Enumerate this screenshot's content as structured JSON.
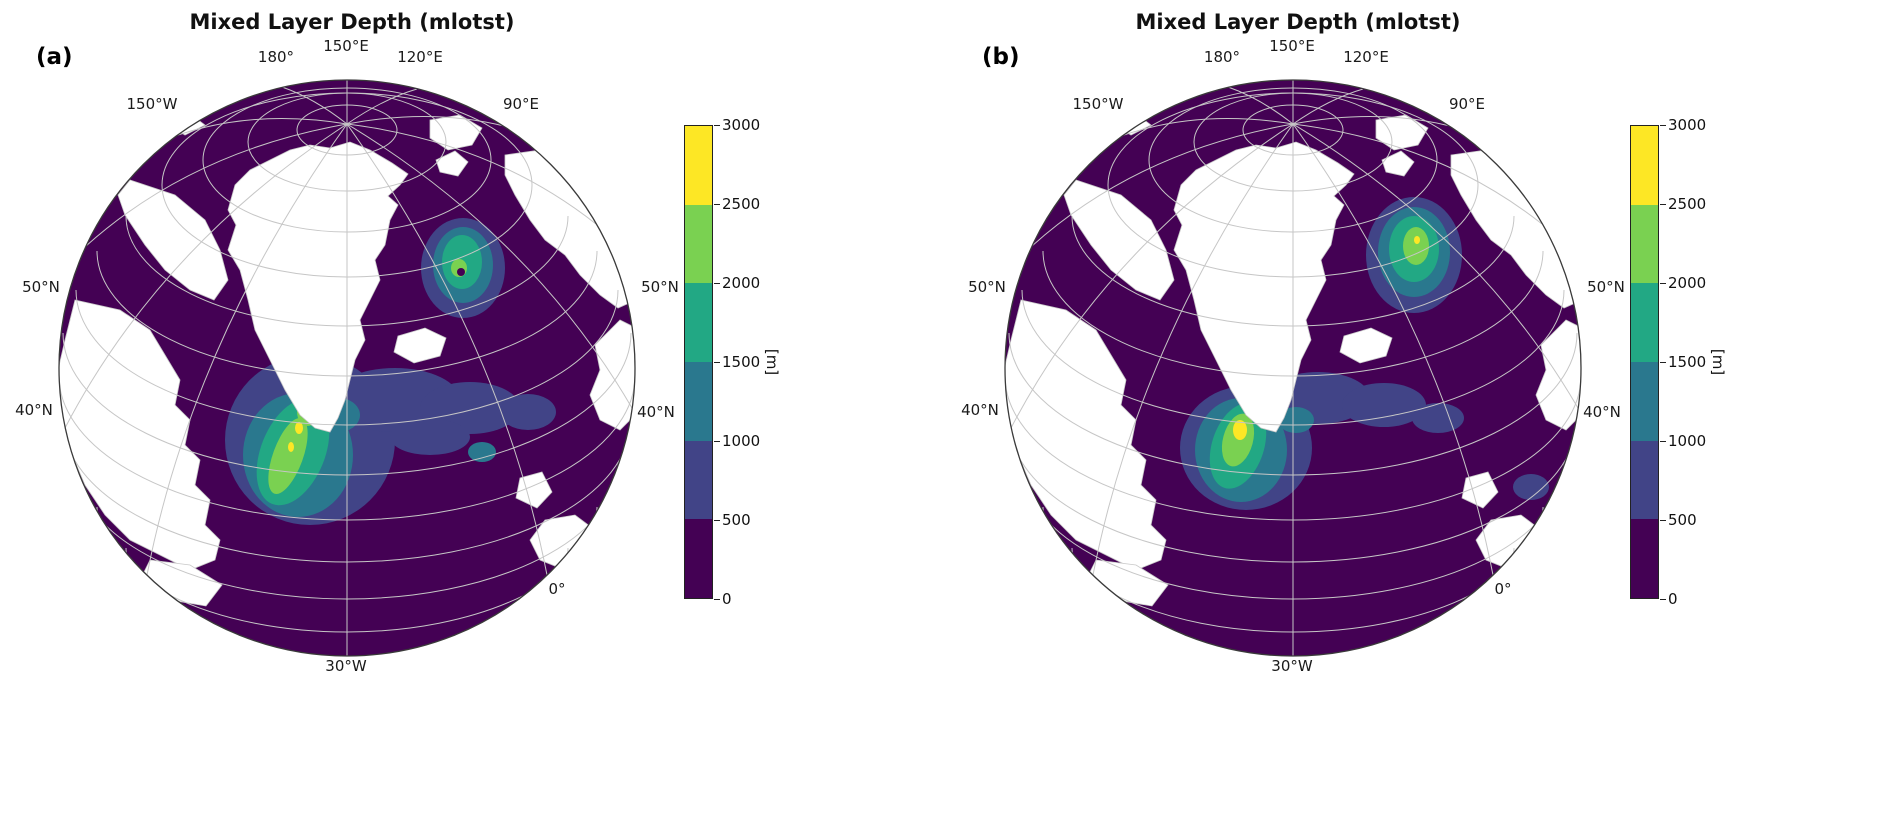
{
  "figure": {
    "panels": [
      {
        "tag": "(a)",
        "title": "Mixed Layer Depth (mlotst)",
        "labels": {
          "lon_180": "180°",
          "lon_150e": "150°E",
          "lon_120e": "120°E",
          "lon_150w": "150°W",
          "lon_90e": "90°E",
          "lat_50n_left": "50°N",
          "lat_40n_left": "40°N",
          "lat_50n_right": "50°N",
          "lat_40n_right": "40°N",
          "lon_0": "0°",
          "lon_30w": "30°W"
        },
        "colorbar": {
          "ticks": [
            "3000",
            "2500",
            "2000",
            "1500",
            "1000",
            "500",
            "0"
          ],
          "unit_label": "[m]"
        }
      },
      {
        "tag": "(b)",
        "title": "Mixed Layer Depth (mlotst)",
        "labels": {
          "lon_180": "180°",
          "lon_150e": "150°E",
          "lon_120e": "120°E",
          "lon_150w": "150°W",
          "lon_90e": "90°E",
          "lat_50n_left": "50°N",
          "lat_40n_left": "40°N",
          "lat_50n_right": "50°N",
          "lat_40n_right": "40°N",
          "lon_0": "0°",
          "lon_30w": "30°W"
        },
        "colorbar": {
          "ticks": [
            "3000",
            "2500",
            "2000",
            "1500",
            "1000",
            "500",
            "0"
          ],
          "unit_label": "[m]"
        }
      }
    ]
  },
  "chart_data": {
    "type": "heatmap",
    "title": "Mixed Layer Depth (mlotst)",
    "variable": "mlotst (ocean mixed layer thickness)",
    "units": "m",
    "projection": "orthographic globe over the North Atlantic / Arctic, central meridian ~30°W",
    "colormap": "viridis, discrete (6 bins)",
    "levels_m": [
      0,
      500,
      1000,
      1500,
      2000,
      2500,
      3000
    ],
    "level_colors": [
      "#440154",
      "#414487",
      "#2a788e",
      "#22a884",
      "#7ad151",
      "#fde725"
    ],
    "colorbar_label": "[m]",
    "colorbar_range": [
      0,
      3000
    ],
    "graticule": {
      "longitude_labels": [
        "150°W",
        "180°",
        "150°E",
        "120°E",
        "90°E",
        "0°",
        "30°W"
      ],
      "latitude_labels": [
        "50°N",
        "40°N"
      ],
      "grid_on": true,
      "grid_color_hint": "light gray"
    },
    "land_color": "#ffffff",
    "ocean_background": "0-500 m bin (dark purple) over most of the ocean",
    "panels": [
      {
        "label": "(a)",
        "features": [
          {
            "region": "Labrador Sea / subpolar North Atlantic south of Greenland",
            "peak_mld_m": "2500-3000 (tiny yellow flecks)",
            "typical_mld_m": "1500-2500 over a broad elongated patch"
          },
          {
            "region": "band extending east across the North Atlantic near 50°N",
            "mld_m": "500-1000, wide band reaching toward Europe"
          },
          {
            "region": "Greenland Sea spot (upper right)",
            "peak_mld_m": "2000-2500",
            "typical_mld_m": "1000-2000 compact spot with small dark center"
          }
        ]
      },
      {
        "label": "(b)",
        "features": [
          {
            "region": "Labrador Sea / subpolar North Atlantic south of Greenland",
            "peak_mld_m": "2500-3000 (distinct yellow core)",
            "typical_mld_m": "1000-2500, smaller extent than panel (a)"
          },
          {
            "region": "band extending east across the North Atlantic near 50°N",
            "mld_m": "500-1000, weaker/narrower than panel (a)"
          },
          {
            "region": "Greenland Sea spot (upper right)",
            "peak_mld_m": "2000-2500",
            "typical_mld_m": "1000-2500, larger and stronger than panel (a)"
          },
          {
            "region": "small patch near 0° meridian (lower right)",
            "mld_m": "500-1000"
          }
        ]
      }
    ]
  }
}
